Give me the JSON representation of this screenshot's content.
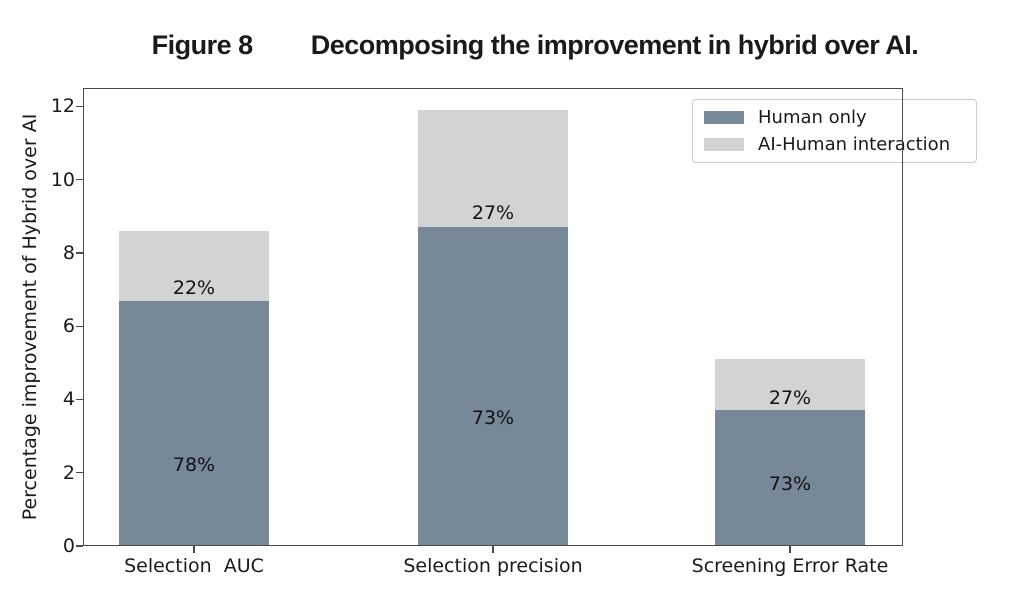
{
  "title": {
    "prefix": "Figure 8",
    "text": "Decomposing the improvement in hybrid over AI."
  },
  "chart_data": {
    "type": "bar",
    "subtype": "stacked",
    "categories": [
      "Selection  AUC",
      "Selection precision",
      "Screening Error Rate"
    ],
    "series": [
      {
        "name": "Human only",
        "color": "#778899",
        "values": [
          6.7,
          8.7,
          3.7
        ]
      },
      {
        "name": "AI-Human interaction",
        "color": "#d3d3d3",
        "values": [
          1.9,
          3.2,
          1.4
        ]
      }
    ],
    "totals": [
      8.6,
      11.9,
      5.1
    ],
    "ylabel": "Percentage improvement of Hybrid over AI",
    "xlabel": "",
    "yticks": [
      0,
      2,
      4,
      6,
      8,
      10,
      12
    ],
    "ylim": [
      0,
      12.5
    ],
    "grid": false,
    "legend": {
      "position": "upper right",
      "entries": [
        "Human only",
        "AI-Human interaction"
      ]
    },
    "annotations": [
      {
        "bar": 0,
        "series": "AI-Human interaction",
        "text": "22%",
        "y": 7.05
      },
      {
        "bar": 0,
        "series": "Human only",
        "text": "78%",
        "y": 2.2
      },
      {
        "bar": 1,
        "series": "AI-Human interaction",
        "text": "27%",
        "y": 9.1
      },
      {
        "bar": 1,
        "series": "Human only",
        "text": "73%",
        "y": 3.5
      },
      {
        "bar": 2,
        "series": "AI-Human interaction",
        "text": "27%",
        "y": 4.05
      },
      {
        "bar": 2,
        "series": "Human only",
        "text": "73%",
        "y": 1.7
      }
    ]
  }
}
